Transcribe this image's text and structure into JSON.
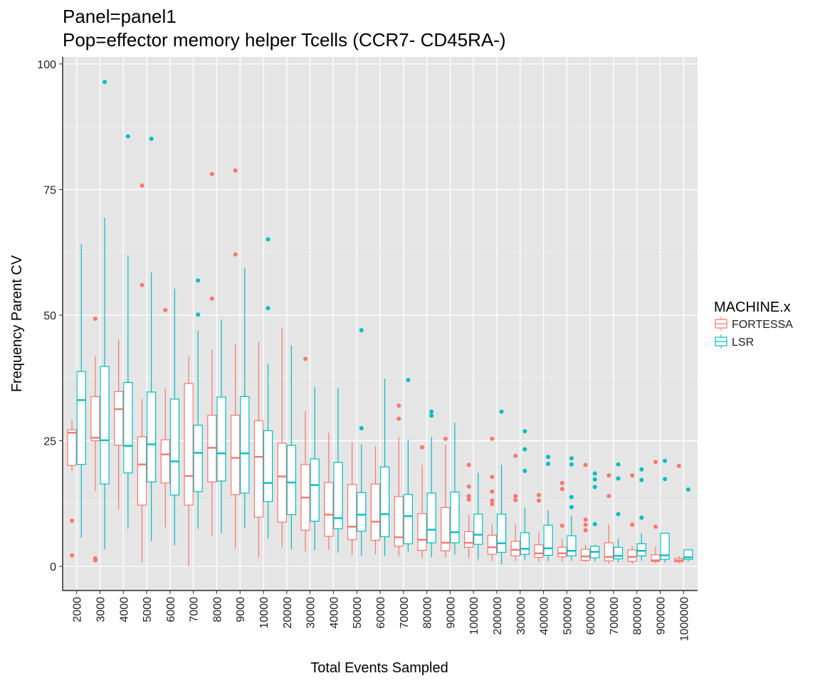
{
  "chart_data": {
    "type": "boxplot",
    "title": "Panel=panel1",
    "subtitle": "Pop=effector memory helper Tcells (CCR7- CD45RA-)",
    "x_label": "Total Events Sampled",
    "y_label": "Frequency Parent CV",
    "legend_title": "MACHINE.x",
    "legend_position": "right",
    "grid": true,
    "categories": [
      "2000",
      "3000",
      "4000",
      "5000",
      "6000",
      "7000",
      "8000",
      "9000",
      "10000",
      "20000",
      "30000",
      "40000",
      "50000",
      "60000",
      "70000",
      "80000",
      "90000",
      "100000",
      "200000",
      "300000",
      "400000",
      "500000",
      "600000",
      "700000",
      "800000",
      "900000",
      "1000000"
    ],
    "ylim": [
      -4.8,
      101.4
    ],
    "yticks": [
      0,
      25,
      50,
      75,
      100
    ],
    "series": [
      {
        "name": "FORTESSA",
        "color": "#F8766D",
        "low": [
          19,
          15,
          11.4,
          0.8,
          7.7,
          0,
          6.1,
          3.5,
          1.8,
          3.8,
          2.9,
          3.3,
          2.3,
          2.4,
          2.0,
          1.7,
          1.8,
          1.6,
          1.1,
          1.1,
          1.0,
          0.9,
          0.9,
          0.6,
          0.5,
          0.6,
          0.6
        ],
        "q1": [
          20.1,
          25.0,
          24.1,
          12.2,
          16.6,
          12.2,
          16.8,
          14.3,
          9.8,
          8.8,
          7.2,
          6.0,
          5.3,
          5.2,
          4.0,
          3.2,
          3.1,
          3.8,
          2.4,
          2.1,
          1.8,
          1.9,
          1.2,
          1.1,
          1.0,
          1.0,
          0.9
        ],
        "median": [
          26.6,
          25.6,
          31.3,
          20.3,
          22.3,
          18.0,
          23.6,
          21.6,
          21.8,
          17.9,
          13.7,
          10.3,
          7.9,
          8.9,
          5.8,
          5.3,
          4.7,
          4.7,
          3.8,
          3.3,
          2.6,
          2.6,
          2.0,
          1.9,
          1.9,
          1.2,
          1.2
        ],
        "q3": [
          27.2,
          33.8,
          34.8,
          25.8,
          25.2,
          36.4,
          30.1,
          30.1,
          29.0,
          24.5,
          20.3,
          16.7,
          16.3,
          16.4,
          13.9,
          10.5,
          11.7,
          6.9,
          6.2,
          5.0,
          4.3,
          3.8,
          3.4,
          4.7,
          3.3,
          2.3,
          1.6
        ],
        "high": [
          29.2,
          41.8,
          45.2,
          33.3,
          35.4,
          41.8,
          43.1,
          44.2,
          44.7,
          47.4,
          30.9,
          26.6,
          24.7,
          23.9,
          25.7,
          20.2,
          24.2,
          10.3,
          8.3,
          8.4,
          6.7,
          5.5,
          4.3,
          8.3,
          4.0,
          3.9,
          2.0
        ],
        "outliers": [
          [
            9.1,
            2.2
          ],
          [
            49.3,
            1.6,
            1.2
          ],
          [],
          [
            75.8,
            56.0
          ],
          [
            51.0
          ],
          [],
          [
            78.1,
            53.3
          ],
          [
            78.8,
            62.1
          ],
          [],
          [],
          [
            41.3
          ],
          [],
          [],
          [],
          [
            32.0,
            29.4
          ],
          [
            23.7
          ],
          [
            25.4
          ],
          [
            20.2,
            15.9,
            14.0,
            13.3
          ],
          [
            25.4,
            17.8,
            14.9,
            13.1,
            12.4
          ],
          [
            22.0,
            14.0,
            13.2
          ],
          [
            14.2,
            13.1
          ],
          [
            16.6,
            15.4,
            8.1
          ],
          [
            20.2,
            9.3,
            8.3,
            7.2
          ],
          [
            18.1,
            14.0
          ],
          [
            18.1,
            8.3
          ],
          [
            20.8,
            7.9
          ],
          [
            20.0
          ]
        ]
      },
      {
        "name": "LSR",
        "color": "#00BFC4",
        "low": [
          5.7,
          3.4,
          7.5,
          5.0,
          4.2,
          7.5,
          6.6,
          7.6,
          5.5,
          3.3,
          3.2,
          2.8,
          2.1,
          2.1,
          2.9,
          1.8,
          2.3,
          1.4,
          0.4,
          1.3,
          1.1,
          1.1,
          1.0,
          0.8,
          1.1,
          0.8,
          1.0
        ],
        "q1": [
          20.3,
          16.4,
          18.6,
          16.8,
          14.2,
          14.9,
          17.0,
          14.6,
          12.9,
          10.3,
          9.0,
          7.5,
          7.0,
          5.9,
          4.5,
          4.7,
          4.7,
          4.4,
          2.8,
          2.4,
          2.2,
          2.1,
          1.7,
          1.5,
          2.1,
          1.4,
          1.4
        ],
        "median": [
          33.1,
          25.1,
          24.0,
          24.3,
          20.9,
          22.6,
          22.5,
          22.5,
          16.6,
          16.7,
          16.2,
          9.6,
          10.3,
          10.4,
          10.0,
          7.3,
          6.8,
          6.3,
          4.6,
          3.5,
          3.6,
          3.1,
          2.9,
          2.1,
          3.1,
          2.2,
          1.8
        ],
        "q3": [
          38.8,
          39.8,
          36.6,
          34.7,
          33.3,
          28.1,
          33.7,
          33.8,
          27.0,
          24.1,
          21.4,
          20.7,
          14.7,
          19.8,
          14.3,
          14.6,
          14.8,
          10.4,
          10.4,
          6.7,
          8.2,
          6.1,
          4.0,
          3.8,
          4.5,
          6.6,
          3.3
        ],
        "high": [
          64.1,
          69.4,
          61.9,
          58.5,
          55.3,
          46.9,
          49.1,
          59.3,
          40.3,
          44.0,
          35.7,
          35.4,
          24.3,
          37.4,
          25.3,
          25.8,
          28.6,
          18.6,
          20.2,
          11.7,
          11.2,
          10.1,
          4.3,
          5.5,
          6.6,
          6.6,
          3.4
        ],
        "outliers": [
          [],
          [
            96.4
          ],
          [
            85.6
          ],
          [
            85.1
          ],
          [],
          [
            56.9,
            50.1
          ],
          [],
          [],
          [
            65.1,
            51.4
          ],
          [],
          [],
          [],
          [
            47.0,
            27.5
          ],
          [],
          [
            37.1
          ],
          [
            30.8,
            30.0
          ],
          [],
          [],
          [
            30.8
          ],
          [
            26.9,
            23.3,
            19.0
          ],
          [
            21.8,
            20.4
          ],
          [
            21.5,
            20.3,
            13.8,
            11.8
          ],
          [
            18.5,
            17.3,
            15.8,
            8.4
          ],
          [
            20.3,
            17.5,
            10.4
          ],
          [
            19.3,
            17.2,
            9.7
          ],
          [
            21.0,
            17.4
          ],
          [
            15.3
          ]
        ]
      }
    ]
  }
}
